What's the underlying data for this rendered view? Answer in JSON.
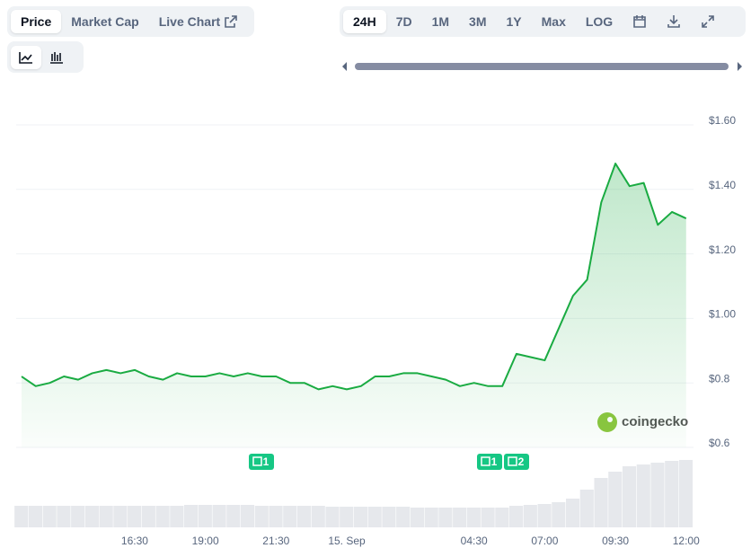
{
  "ui": {
    "tabs": [
      "Price",
      "Market Cap",
      "Live Chart"
    ],
    "ranges": [
      "24H",
      "7D",
      "1M",
      "3M",
      "1Y",
      "Max",
      "LOG"
    ],
    "watermark": "coingecko",
    "news": [
      1,
      1,
      2
    ]
  },
  "chart_data": {
    "type": "area",
    "color": "#1aab42",
    "grid": true,
    "categories": [
      null,
      null,
      null,
      null,
      null,
      null,
      null,
      null,
      "16:30",
      null,
      null,
      null,
      null,
      "19:00",
      null,
      null,
      null,
      null,
      "21:30",
      null,
      null,
      null,
      null,
      "15. Sep",
      null,
      null,
      null,
      null,
      null,
      null,
      null,
      null,
      "04:30",
      null,
      null,
      null,
      null,
      "07:00",
      null,
      null,
      null,
      null,
      "09:30",
      null,
      null,
      null,
      null,
      "12:00"
    ],
    "series": [
      {
        "name": "Price",
        "values": [
          0.82,
          0.79,
          0.8,
          0.82,
          0.81,
          0.83,
          0.84,
          0.83,
          0.84,
          0.82,
          0.81,
          0.83,
          0.82,
          0.82,
          0.83,
          0.82,
          0.83,
          0.82,
          0.82,
          0.8,
          0.8,
          0.78,
          0.79,
          0.78,
          0.79,
          0.82,
          0.82,
          0.83,
          0.83,
          0.82,
          0.81,
          0.79,
          0.8,
          0.79,
          0.79,
          0.89,
          0.88,
          0.87,
          0.97,
          1.07,
          1.12,
          1.36,
          1.48,
          1.41,
          1.42,
          1.29,
          1.33,
          1.31
        ]
      },
      {
        "name": "Volume",
        "values": [
          24,
          24,
          24,
          24,
          24,
          24,
          24,
          24,
          24,
          24,
          24,
          24,
          25,
          25,
          25,
          25,
          25,
          24,
          24,
          24,
          24,
          24,
          23,
          23,
          23,
          23,
          23,
          23,
          22,
          22,
          22,
          22,
          22,
          22,
          22,
          24,
          25,
          26,
          28,
          32,
          42,
          55,
          62,
          68,
          70,
          72,
          74,
          75
        ]
      }
    ],
    "ylim": [
      0.6,
      1.6
    ],
    "yticks": [
      {
        "value": 0.6,
        "label": "$0.6"
      },
      {
        "value": 0.8,
        "label": "$0.8"
      },
      {
        "value": 1.0,
        "label": "$1.00"
      },
      {
        "value": 1.2,
        "label": "$1.20"
      },
      {
        "value": 1.4,
        "label": "$1.40"
      },
      {
        "value": 1.6,
        "label": "$1.60"
      }
    ]
  }
}
